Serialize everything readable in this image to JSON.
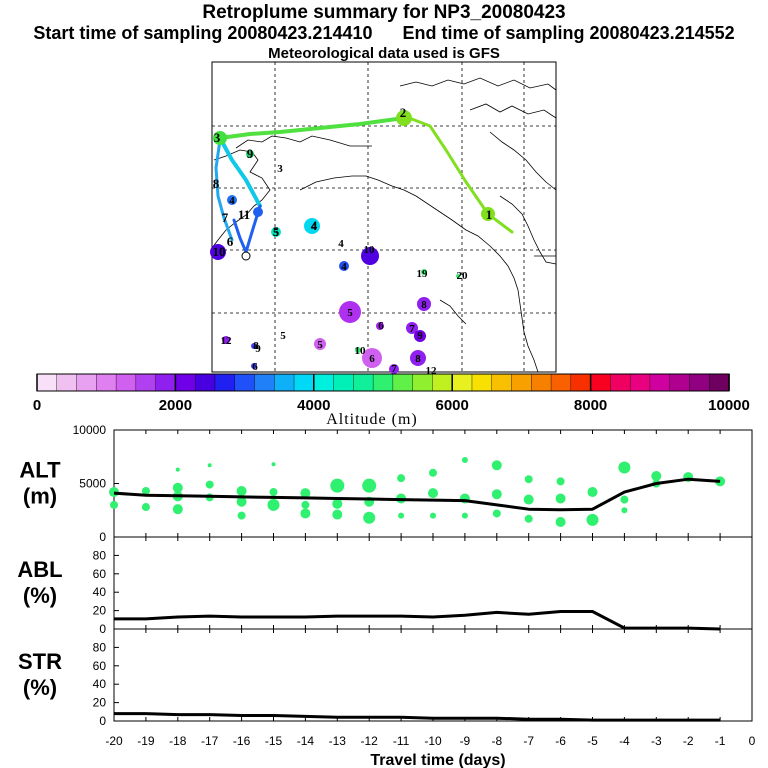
{
  "titles": {
    "main": "Retroplume summary for NP3_20080423",
    "start": "Start time of sampling 20080423.214410",
    "end": "End time of sampling 20080423.214552",
    "met": "Meteorological data used is GFS"
  },
  "colorbar": {
    "ticks": [
      "0",
      "2000",
      "4000",
      "6000",
      "8000",
      "10000"
    ],
    "label": "Altitude (m)",
    "colors": [
      "#f8e0f8",
      "#f0c0f0",
      "#e8a0f0",
      "#e080f0",
      "#d060f0",
      "#b040f0",
      "#9020f0",
      "#7000e8",
      "#4800e0",
      "#2020f0",
      "#2050f8",
      "#2080f8",
      "#10b0f8",
      "#00d8f8",
      "#00f0e0",
      "#00f0b8",
      "#10f098",
      "#30f070",
      "#60f048",
      "#90f030",
      "#c0f020",
      "#e8f020",
      "#f8e000",
      "#f8c000",
      "#f8a000",
      "#f88000",
      "#f86000",
      "#f83000",
      "#f80020",
      "#f00060",
      "#e80080",
      "#d000a0",
      "#b00090",
      "#900080",
      "#700060"
    ]
  },
  "map": {
    "track_labels": [
      {
        "t": "1",
        "color": "#80f020"
      },
      {
        "t": "2",
        "color": "#80f020"
      },
      {
        "t": "3",
        "color": "#40f040"
      },
      {
        "t": "4",
        "color": "#00e8c0"
      },
      {
        "t": "5",
        "color": "#00e8c0"
      },
      {
        "t": "6",
        "color": "#4040f0"
      },
      {
        "t": "7",
        "color": "#4040f0"
      },
      {
        "t": "8",
        "color": "#00c8f0"
      },
      {
        "t": "9",
        "color": "#20e0a0"
      },
      {
        "t": "10",
        "color": "#5000e0"
      },
      {
        "t": "11",
        "color": "#2070f0"
      }
    ],
    "cluster_labels": [
      {
        "t": "3",
        "color": "#40f040"
      },
      {
        "t": "4",
        "color": "#00d8f0"
      },
      {
        "t": "4",
        "color": "#2070f0"
      },
      {
        "t": "4",
        "color": "#2080f0"
      },
      {
        "t": "4",
        "color": "#00c0a0"
      },
      {
        "t": "5",
        "color": "#00e0c0"
      },
      {
        "t": "10",
        "color": "#5000e0"
      },
      {
        "t": "19",
        "color": "#40f040"
      },
      {
        "t": "20",
        "color": "#40f040"
      },
      {
        "t": "8",
        "color": "#9020f0"
      },
      {
        "t": "5",
        "color": "#a020f0"
      },
      {
        "t": "6",
        "color": "#a020f0"
      },
      {
        "t": "7",
        "color": "#9020f0"
      },
      {
        "t": "9",
        "color": "#9020f0"
      },
      {
        "t": "12",
        "color": "#9020f0"
      },
      {
        "t": "9",
        "color": "#7000e0"
      },
      {
        "t": "8",
        "color": "#7000e0"
      },
      {
        "t": "5",
        "color": "#d060f0"
      },
      {
        "t": "5",
        "color": "#ffffff"
      },
      {
        "t": "10",
        "color": "#40f040"
      },
      {
        "t": "6",
        "color": "#c040f0"
      },
      {
        "t": "8",
        "color": "#9020f0"
      },
      {
        "t": "7",
        "color": "#9020f0"
      },
      {
        "t": "6",
        "color": "#4040f0"
      },
      {
        "t": "12",
        "color": "#ffffff"
      }
    ]
  },
  "chart_data": {
    "type": "line",
    "xlabel": "Travel time (days)",
    "x_ticks": [
      "-20",
      "-19",
      "-18",
      "-17",
      "-16",
      "-15",
      "-14",
      "-13",
      "-12",
      "-11",
      "-10",
      "-9",
      "-8",
      "-7",
      "-6",
      "-5",
      "-4",
      "-3",
      "-2",
      "-1",
      "0"
    ],
    "x_range": [
      -20,
      0
    ],
    "panels": [
      {
        "label_top": "ALT",
        "label_bottom": "(m)",
        "ylim": [
          0,
          10000
        ],
        "y_ticks": [
          "0",
          "5000",
          "10000"
        ],
        "mean_line": {
          "x": [
            -20,
            -19,
            -18,
            -17,
            -16,
            -15,
            -14,
            -13,
            -12,
            -11,
            -10,
            -9,
            -8,
            -7,
            -6,
            -5,
            -4,
            -3,
            -2,
            -1
          ],
          "y": [
            4100,
            3900,
            3850,
            3800,
            3750,
            3700,
            3650,
            3600,
            3550,
            3500,
            3450,
            3400,
            3000,
            2600,
            2550,
            2600,
            4200,
            5000,
            5400,
            5200
          ]
        },
        "scatter": {
          "points": [
            [
              -20,
              4200
            ],
            [
              -20,
              3000
            ],
            [
              -19,
              4300
            ],
            [
              -19,
              2800
            ],
            [
              -18,
              4600
            ],
            [
              -18,
              3800
            ],
            [
              -18,
              2600
            ],
            [
              -18,
              6300
            ],
            [
              -17,
              4900
            ],
            [
              -17,
              3700
            ],
            [
              -17,
              6700
            ],
            [
              -16,
              4300
            ],
            [
              -16,
              3300
            ],
            [
              -16,
              2000
            ],
            [
              -15,
              4200
            ],
            [
              -15,
              3000
            ],
            [
              -15,
              6800
            ],
            [
              -14,
              4100
            ],
            [
              -14,
              3000
            ],
            [
              -14,
              2200
            ],
            [
              -13,
              4800
            ],
            [
              -13,
              3100
            ],
            [
              -13,
              2100
            ],
            [
              -12,
              4800
            ],
            [
              -12,
              3300
            ],
            [
              -12,
              1800
            ],
            [
              -11,
              5500
            ],
            [
              -11,
              3600
            ],
            [
              -11,
              2000
            ],
            [
              -10,
              6000
            ],
            [
              -10,
              4100
            ],
            [
              -10,
              2000
            ],
            [
              -9,
              7200
            ],
            [
              -9,
              3600
            ],
            [
              -9,
              2000
            ],
            [
              -8,
              6700
            ],
            [
              -8,
              4000
            ],
            [
              -8,
              2200
            ],
            [
              -7,
              5400
            ],
            [
              -7,
              3500
            ],
            [
              -7,
              1700
            ],
            [
              -6,
              5200
            ],
            [
              -6,
              3600
            ],
            [
              -6,
              1400
            ],
            [
              -5,
              4200
            ],
            [
              -5,
              1600
            ],
            [
              -4,
              6500
            ],
            [
              -4,
              3500
            ],
            [
              -4,
              2500
            ],
            [
              -3,
              5700
            ],
            [
              -3,
              5000
            ],
            [
              -2,
              5600
            ],
            [
              -1,
              5200
            ]
          ],
          "sizes": [
            5,
            4,
            4,
            4,
            5,
            5,
            5,
            2,
            4,
            4,
            2,
            5,
            5,
            4,
            4,
            6,
            2,
            5,
            4,
            5,
            7,
            5,
            5,
            7,
            5,
            6,
            4,
            5,
            3,
            4,
            5,
            3,
            3,
            5,
            3,
            5,
            5,
            4,
            4,
            5,
            4,
            4,
            5,
            5,
            5,
            6,
            6,
            4,
            3,
            5,
            4,
            5,
            5
          ]
        }
      },
      {
        "label_top": "ABL",
        "label_bottom": "(%)",
        "ylim": [
          0,
          100
        ],
        "y_ticks": [
          "0",
          "20",
          "40",
          "60",
          "80"
        ],
        "mean_line": {
          "x": [
            -20,
            -19,
            -18,
            -17,
            -16,
            -15,
            -14,
            -13,
            -12,
            -11,
            -10,
            -9,
            -8,
            -7,
            -6,
            -5,
            -4,
            -3,
            -2,
            -1
          ],
          "y": [
            11,
            11,
            13,
            14,
            13,
            13,
            13,
            14,
            14,
            14,
            13,
            15,
            18,
            16,
            19,
            19,
            1,
            1,
            1,
            0
          ]
        }
      },
      {
        "label_top": "STR",
        "label_bottom": "(%)",
        "ylim": [
          0,
          100
        ],
        "y_ticks": [
          "0",
          "20",
          "40",
          "60",
          "80"
        ],
        "mean_line": {
          "x": [
            -20,
            -19,
            -18,
            -17,
            -16,
            -15,
            -14,
            -13,
            -12,
            -11,
            -10,
            -9,
            -8,
            -7,
            -6,
            -5,
            -4,
            -3,
            -2,
            -1
          ],
          "y": [
            8,
            8,
            7,
            7,
            6,
            6,
            5,
            4,
            4,
            4,
            3,
            3,
            3,
            2,
            2,
            1,
            1,
            1,
            1,
            1
          ]
        }
      }
    ]
  }
}
